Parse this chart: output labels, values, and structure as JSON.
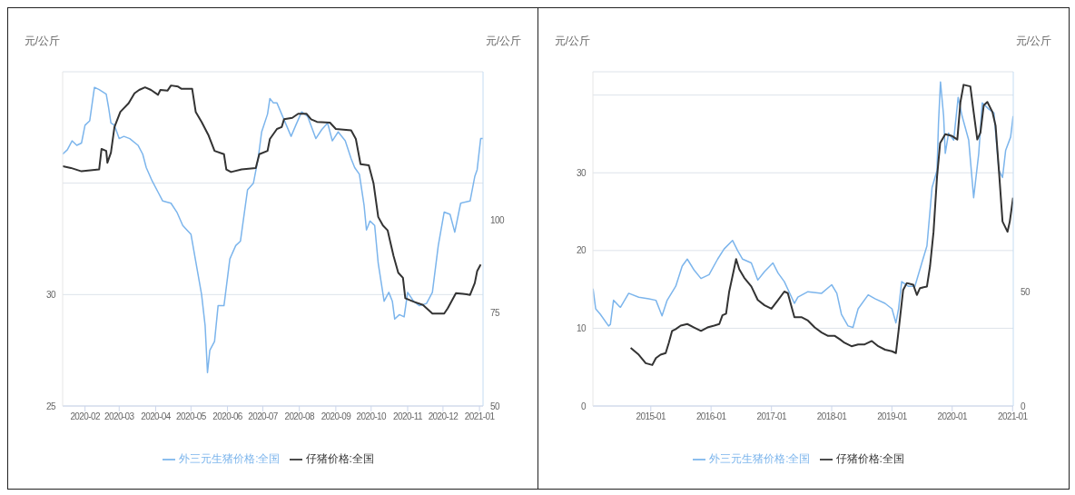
{
  "chart_data": [
    {
      "type": "line",
      "ylabel": "元/公斤",
      "y2label": "元/公斤",
      "legend": "bottom",
      "grid": "y",
      "xlim": [
        "2020-01-13",
        "2021-01-04"
      ],
      "xticks": [
        {
          "value": "2020-02-01",
          "label": "2020-02"
        },
        {
          "value": "2020-03-01",
          "label": "2020-03"
        },
        {
          "value": "2020-04-01",
          "label": "2020-04"
        },
        {
          "value": "2020-05-01",
          "label": "2020-05"
        },
        {
          "value": "2020-06-01",
          "label": "2020-06"
        },
        {
          "value": "2020-07-01",
          "label": "2020-07"
        },
        {
          "value": "2020-08-01",
          "label": "2020-08"
        },
        {
          "value": "2020-09-01",
          "label": "2020-09"
        },
        {
          "value": "2020-10-01",
          "label": "2020-10"
        },
        {
          "value": "2020-11-01",
          "label": "2020-11"
        },
        {
          "value": "2020-12-01",
          "label": "2020-12"
        },
        {
          "value": "2021-01-01",
          "label": "2021-01"
        }
      ],
      "ylim": [
        25,
        40
      ],
      "yticks": [
        25,
        30,
        {
          "value": 35,
          "label": null
        }
      ],
      "y2lim": [
        50,
        140
      ],
      "y2ticks": [
        50,
        75,
        100
      ],
      "series": [
        {
          "name": "外三元生猪价格:全国",
          "color": "#7cb5ec",
          "x": [
            "2020-01-13",
            "2020-01-17",
            "2020-01-21",
            "2020-01-25",
            "2020-01-29",
            "2020-02-01",
            "2020-02-05",
            "2020-02-09",
            "2020-02-13",
            "2020-02-19",
            "2020-02-21",
            "2020-02-23",
            "2020-02-26",
            "2020-03-01",
            "2020-03-05",
            "2020-03-10",
            "2020-03-17",
            "2020-03-21",
            "2020-03-24",
            "2020-03-29",
            "2020-04-03",
            "2020-04-07",
            "2020-04-14",
            "2020-04-19",
            "2020-04-24",
            "2020-05-01",
            "2020-05-05",
            "2020-05-10",
            "2020-05-13",
            "2020-05-15",
            "2020-05-17",
            "2020-05-21",
            "2020-05-24",
            "2020-05-29",
            "2020-06-03",
            "2020-06-08",
            "2020-06-12",
            "2020-06-18",
            "2020-06-23",
            "2020-06-27",
            "2020-06-30",
            "2020-07-05",
            "2020-07-07",
            "2020-07-10",
            "2020-07-13",
            "2020-07-17",
            "2020-07-21",
            "2020-07-25",
            "2020-07-29",
            "2020-08-03",
            "2020-08-08",
            "2020-08-15",
            "2020-08-20",
            "2020-08-25",
            "2020-08-29",
            "2020-09-03",
            "2020-09-09",
            "2020-09-14",
            "2020-09-17",
            "2020-09-21",
            "2020-09-25",
            "2020-09-27",
            "2020-09-30",
            "2020-10-04",
            "2020-10-07",
            "2020-10-12",
            "2020-10-16",
            "2020-10-19",
            "2020-10-21",
            "2020-10-25",
            "2020-10-29",
            "2020-11-01",
            "2020-11-06",
            "2020-11-11",
            "2020-11-17",
            "2020-11-22",
            "2020-11-27",
            "2020-12-02",
            "2020-12-07",
            "2020-12-11",
            "2020-12-16",
            "2020-12-24",
            "2020-12-28",
            "2020-12-30",
            "2021-01-02",
            "2021-01-04"
          ],
          "values": [
            36.3,
            36.5,
            36.9,
            36.7,
            36.8,
            37.6,
            37.8,
            39.3,
            39.2,
            39.0,
            38.4,
            37.7,
            37.6,
            37.0,
            37.1,
            37.0,
            36.7,
            36.3,
            35.7,
            35.1,
            34.6,
            34.2,
            34.1,
            33.7,
            33.1,
            32.7,
            31.5,
            30.0,
            28.6,
            26.5,
            27.5,
            27.9,
            29.5,
            29.5,
            31.6,
            32.2,
            32.4,
            34.7,
            35.0,
            36.1,
            37.3,
            38.1,
            38.8,
            38.6,
            38.6,
            38.1,
            37.6,
            37.1,
            37.6,
            38.2,
            38.0,
            37.0,
            37.4,
            37.7,
            36.9,
            37.3,
            36.9,
            36.1,
            35.7,
            35.4,
            34.0,
            32.9,
            33.3,
            33.1,
            31.4,
            29.7,
            30.1,
            29.7,
            28.9,
            29.1,
            29.0,
            30.1,
            29.7,
            29.5,
            29.6,
            30.1,
            32.2,
            33.7,
            33.6,
            32.8,
            34.1,
            34.2,
            35.3,
            35.6,
            37.0,
            37.0
          ]
        },
        {
          "name": "仔猪价格:全国",
          "color": "#333333",
          "axis": "y2",
          "x": [
            "2020-01-13",
            "2020-01-20",
            "2020-01-29",
            "2020-02-13",
            "2020-02-15",
            "2020-02-19",
            "2020-02-20",
            "2020-02-23",
            "2020-02-26",
            "2020-03-02",
            "2020-03-09",
            "2020-03-14",
            "2020-03-18",
            "2020-03-23",
            "2020-03-28",
            "2020-04-03",
            "2020-04-05",
            "2020-04-11",
            "2020-04-14",
            "2020-04-20",
            "2020-04-23",
            "2020-05-02",
            "2020-05-05",
            "2020-05-10",
            "2020-05-16",
            "2020-05-21",
            "2020-05-29",
            "2020-05-31",
            "2020-06-04",
            "2020-06-13",
            "2020-06-25",
            "2020-06-28",
            "2020-07-05",
            "2020-07-07",
            "2020-07-13",
            "2020-07-17",
            "2020-07-19",
            "2020-07-26",
            "2020-07-31",
            "2020-08-07",
            "2020-08-11",
            "2020-08-16",
            "2020-08-27",
            "2020-09-01",
            "2020-09-14",
            "2020-09-18",
            "2020-09-22",
            "2020-09-29",
            "2020-10-03",
            "2020-10-07",
            "2020-10-11",
            "2020-10-15",
            "2020-10-17",
            "2020-10-20",
            "2020-10-24",
            "2020-10-28",
            "2020-10-30",
            "2020-11-06",
            "2020-11-14",
            "2020-11-22",
            "2020-12-02",
            "2020-12-05",
            "2020-12-12",
            "2020-12-21",
            "2020-12-24",
            "2020-12-28",
            "2020-12-30",
            "2021-01-02"
          ],
          "values": [
            114.6,
            114.1,
            113.2,
            113.7,
            119.2,
            118.7,
            115.5,
            118.2,
            125.1,
            129.2,
            131.5,
            134.2,
            135.1,
            135.8,
            135.1,
            133.8,
            135.1,
            134.9,
            136.3,
            136.0,
            135.4,
            135.4,
            129.2,
            126.5,
            122.8,
            118.7,
            117.8,
            113.7,
            113.0,
            113.7,
            114.1,
            117.8,
            118.7,
            121.9,
            124.6,
            125.1,
            127.2,
            127.6,
            128.7,
            128.7,
            127.2,
            126.5,
            126.3,
            124.6,
            124.2,
            121.9,
            115.1,
            114.8,
            110.0,
            100.9,
            98.6,
            97.3,
            94.5,
            90.4,
            85.9,
            84.5,
            79.0,
            78.1,
            77.2,
            74.9,
            74.9,
            76.3,
            80.4,
            80.1,
            79.9,
            83.1,
            86.3,
            88.1
          ]
        }
      ]
    },
    {
      "type": "line",
      "ylabel": "元/公斤",
      "y2label": "元/公斤",
      "legend": "bottom",
      "grid": "y",
      "xlim": [
        "2014-01-15",
        "2021-01-05"
      ],
      "xticks": [
        {
          "value": "2015-01-01",
          "label": "2015-01"
        },
        {
          "value": "2016-01-01",
          "label": "2016-01"
        },
        {
          "value": "2017-01-01",
          "label": "2017-01"
        },
        {
          "value": "2018-01-01",
          "label": "2018-01"
        },
        {
          "value": "2019-01-01",
          "label": "2019-01"
        },
        {
          "value": "2020-01-01",
          "label": "2020-01"
        },
        {
          "value": "2021-01-01",
          "label": "2021-01"
        }
      ],
      "ylim": [
        0,
        43
      ],
      "yticks": [
        0,
        10,
        20,
        30,
        {
          "value": 40,
          "label": null
        }
      ],
      "y2lim": [
        0,
        146
      ],
      "y2ticks": [
        0,
        50
      ],
      "series": [
        {
          "name": "外三元生猪价格:全国",
          "color": "#7cb5ec",
          "x": [
            "2014-01-16",
            "2014-02-01",
            "2014-03-01",
            "2014-04-20",
            "2014-05-01",
            "2014-05-20",
            "2014-06-20",
            "2014-07-01",
            "2014-08-20",
            "2014-10-20",
            "2014-12-20",
            "2015-02-01",
            "2015-03-10",
            "2015-04-10",
            "2015-06-01",
            "2015-07-10",
            "2015-08-10",
            "2015-09-20",
            "2015-11-01",
            "2015-12-20",
            "2016-02-10",
            "2016-03-20",
            "2016-05-10",
            "2016-06-10",
            "2016-07-10",
            "2016-09-01",
            "2016-10-10",
            "2016-11-20",
            "2017-01-10",
            "2017-02-10",
            "2017-03-20",
            "2017-05-20",
            "2017-06-10",
            "2017-08-10",
            "2017-11-01",
            "2018-01-01",
            "2018-02-01",
            "2018-03-01",
            "2018-04-10",
            "2018-05-10",
            "2018-06-10",
            "2018-08-10",
            "2018-09-20",
            "2018-11-20",
            "2019-01-01",
            "2019-01-25",
            "2019-02-10",
            "2019-03-01",
            "2019-04-10",
            "2019-05-20",
            "2019-07-01",
            "2019-08-01",
            "2019-09-01",
            "2019-10-01",
            "2019-10-10",
            "2019-10-22",
            "2019-11-10",
            "2019-11-20",
            "2019-12-10",
            "2020-01-10",
            "2020-02-06",
            "2020-03-01",
            "2020-04-10",
            "2020-05-10",
            "2020-06-10",
            "2020-07-01",
            "2020-08-10",
            "2020-09-10",
            "2020-10-10",
            "2020-11-01",
            "2020-11-20",
            "2020-12-20",
            "2021-01-04"
          ],
          "values": [
            15.1,
            12.5,
            11.8,
            10.3,
            10.5,
            13.6,
            12.9,
            12.7,
            14.5,
            14.0,
            13.8,
            13.6,
            11.6,
            13.6,
            15.4,
            18.0,
            18.9,
            17.5,
            16.4,
            16.9,
            18.9,
            20.2,
            21.3,
            20.0,
            18.9,
            18.4,
            16.2,
            17.3,
            18.4,
            17.1,
            16.0,
            13.2,
            14.0,
            14.7,
            14.5,
            15.6,
            14.5,
            11.8,
            10.3,
            10.1,
            12.5,
            14.3,
            13.8,
            13.2,
            12.5,
            10.7,
            12.5,
            16.0,
            15.4,
            15.4,
            18.4,
            20.6,
            28.1,
            30.3,
            36.4,
            41.7,
            37.3,
            32.5,
            35.1,
            34.2,
            39.7,
            37.3,
            34.2,
            26.8,
            32.5,
            39.0,
            38.2,
            37.7,
            30.3,
            29.4,
            32.9,
            34.6,
            37.3
          ]
        },
        {
          "name": "仔猪价格:全国",
          "color": "#333333",
          "axis": "y2",
          "x": [
            "2014-09-01",
            "2014-10-20",
            "2014-12-01",
            "2015-01-10",
            "2015-02-01",
            "2015-03-01",
            "2015-04-01",
            "2015-04-20",
            "2015-05-10",
            "2015-06-01",
            "2015-07-01",
            "2015-08-10",
            "2015-09-20",
            "2015-11-01",
            "2015-12-10",
            "2016-01-20",
            "2016-02-20",
            "2016-03-10",
            "2016-04-01",
            "2016-04-20",
            "2016-05-10",
            "2016-06-01",
            "2016-06-20",
            "2016-07-20",
            "2016-09-01",
            "2016-10-10",
            "2016-11-20",
            "2017-01-01",
            "2017-02-10",
            "2017-03-20",
            "2017-04-10",
            "2017-05-20",
            "2017-07-01",
            "2017-08-10",
            "2017-09-20",
            "2017-11-01",
            "2017-12-10",
            "2018-01-20",
            "2018-02-20",
            "2018-03-20",
            "2018-05-01",
            "2018-06-10",
            "2018-07-20",
            "2018-09-01",
            "2018-10-10",
            "2018-11-20",
            "2019-01-01",
            "2019-01-25",
            "2019-02-10",
            "2019-03-10",
            "2019-04-01",
            "2019-05-10",
            "2019-06-01",
            "2019-06-20",
            "2019-08-01",
            "2019-08-20",
            "2019-09-10",
            "2019-10-01",
            "2019-10-20",
            "2019-11-20",
            "2020-01-01",
            "2020-02-01",
            "2020-02-20",
            "2020-03-10",
            "2020-04-20",
            "2020-05-10",
            "2020-06-01",
            "2020-06-20",
            "2020-07-10",
            "2020-08-01",
            "2020-09-01",
            "2020-09-20",
            "2020-10-10",
            "2020-11-01",
            "2020-12-01",
            "2020-12-15",
            "2021-01-04"
          ],
          "values": [
            25.4,
            22.4,
            18.7,
            17.9,
            20.9,
            22.4,
            23.1,
            27.6,
            32.8,
            33.6,
            35.1,
            35.8,
            34.3,
            32.8,
            34.3,
            35.1,
            35.8,
            39.6,
            40.3,
            50.0,
            56.7,
            64.2,
            59.7,
            56.0,
            52.2,
            46.3,
            44.0,
            42.5,
            46.3,
            50.0,
            49.3,
            38.8,
            38.8,
            37.3,
            34.3,
            32.1,
            30.6,
            30.6,
            29.1,
            27.6,
            26.1,
            26.9,
            26.9,
            28.4,
            26.1,
            24.6,
            23.9,
            23.1,
            32.8,
            50.7,
            53.7,
            53.0,
            48.5,
            51.5,
            52.2,
            61.2,
            76.1,
            100.0,
            114.9,
            118.7,
            117.9,
            116.4,
            132.8,
            140.3,
            139.6,
            128.4,
            116.4,
            119.4,
            131.3,
            132.8,
            128.4,
            122.4,
            103.0,
            80.6,
            76.1,
            80.6,
            91.0
          ]
        }
      ]
    }
  ]
}
